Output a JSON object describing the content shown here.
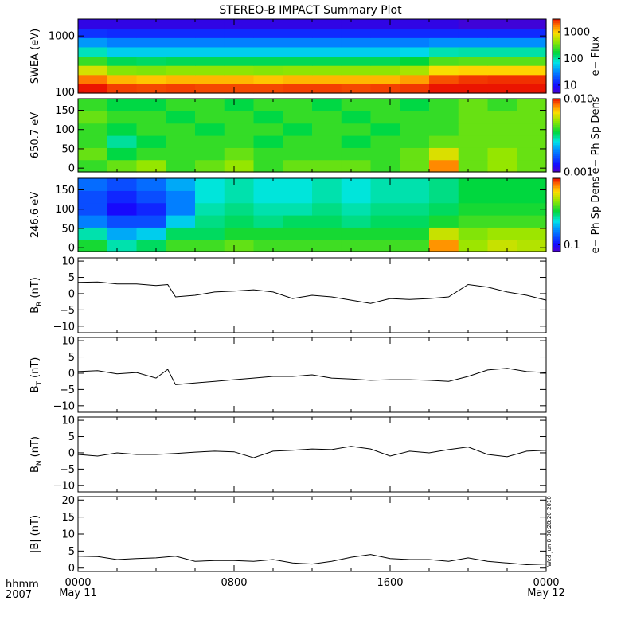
{
  "figure": {
    "title": "STEREO-B IMPACT Summary Plot",
    "footer_left": [
      "hhmm",
      "2007"
    ],
    "x_ticks": [
      {
        "label": "0000",
        "sub": "May 11",
        "hour": 0
      },
      {
        "label": "0800",
        "sub": "",
        "hour": 8
      },
      {
        "label": "1600",
        "sub": "",
        "hour": 16
      },
      {
        "label": "0000",
        "sub": "May 12",
        "hour": 24
      }
    ],
    "timestamp": "Wed Jun 8 08:28:20 2010"
  },
  "chart_data": [
    {
      "id": "swea",
      "type": "heatmap",
      "ylabel": "SWEA (eV)",
      "yscale": "log",
      "ylim": [
        95,
        2000
      ],
      "yticks": [
        {
          "v": 100,
          "l": "100"
        },
        {
          "v": 1000,
          "l": "1000"
        }
      ],
      "colorbar": {
        "label": "e− Flux",
        "scale": "log",
        "range": [
          5,
          3000
        ],
        "ticks": [
          {
            "v": 10,
            "l": "10"
          },
          {
            "v": 100,
            "l": "100"
          },
          {
            "v": 1000,
            "l": "1000"
          }
        ]
      },
      "rows_low_to_high": [
        [
          3000,
          2400,
          2300,
          2400,
          2300,
          2300,
          2300,
          2400,
          2400,
          2300,
          2400,
          2500,
          3200,
          3400,
          3500,
          3500
        ],
        [
          1800,
          1200,
          1100,
          1200,
          1200,
          1200,
          1100,
          1200,
          1200,
          1200,
          1200,
          1400,
          2200,
          2500,
          2600,
          2600
        ],
        [
          700,
          400,
          380,
          420,
          420,
          420,
          400,
          420,
          420,
          420,
          420,
          500,
          900,
          1000,
          1000,
          1000
        ],
        [
          240,
          150,
          140,
          150,
          150,
          150,
          150,
          150,
          150,
          150,
          150,
          170,
          280,
          300,
          300,
          300
        ],
        [
          90,
          60,
          60,
          60,
          60,
          60,
          60,
          60,
          60,
          60,
          60,
          65,
          95,
          100,
          100,
          100
        ],
        [
          38,
          30,
          30,
          30,
          30,
          30,
          30,
          30,
          30,
          30,
          30,
          30,
          35,
          35,
          35,
          35
        ],
        [
          14,
          13,
          13,
          13,
          13,
          13,
          13,
          13,
          13,
          13,
          13,
          13,
          13,
          13,
          13,
          13
        ],
        [
          7,
          7,
          7,
          7,
          7,
          7,
          7,
          7,
          7,
          7,
          7,
          7,
          7,
          6,
          6,
          6
        ]
      ]
    },
    {
      "id": "pad650",
      "type": "heatmap",
      "ylabel": "650.7 eV",
      "yscale": "linear",
      "ylim": [
        -10,
        180
      ],
      "yticks": [
        {
          "v": 0,
          "l": "0"
        },
        {
          "v": 50,
          "l": "50"
        },
        {
          "v": 100,
          "l": "100"
        },
        {
          "v": 150,
          "l": "150"
        }
      ],
      "colorbar": {
        "label": "e− Ph Sp Dens",
        "scale": "log",
        "range": [
          0.001,
          0.01
        ],
        "ticks": [
          {
            "v": 0.001,
            "l": "0.001"
          },
          {
            "v": 0.01,
            "l": "0.010"
          }
        ]
      },
      "rows_low_to_high": [
        [
          0.004,
          0.0045,
          0.005,
          0.004,
          0.0045,
          0.005,
          0.004,
          0.0045,
          0.0045,
          0.0045,
          0.004,
          0.0045,
          0.008,
          0.0045,
          0.005,
          0.0045
        ],
        [
          0.0045,
          0.0035,
          0.004,
          0.004,
          0.004,
          0.0045,
          0.004,
          0.004,
          0.004,
          0.004,
          0.004,
          0.0045,
          0.006,
          0.0045,
          0.005,
          0.0045
        ],
        [
          0.004,
          0.003,
          0.0035,
          0.004,
          0.004,
          0.004,
          0.0035,
          0.004,
          0.004,
          0.0035,
          0.004,
          0.004,
          0.0045,
          0.0045,
          0.0045,
          0.0045
        ],
        [
          0.004,
          0.0035,
          0.004,
          0.004,
          0.0035,
          0.004,
          0.004,
          0.0035,
          0.004,
          0.004,
          0.0035,
          0.004,
          0.004,
          0.0045,
          0.0045,
          0.0045
        ],
        [
          0.0045,
          0.004,
          0.004,
          0.0035,
          0.004,
          0.004,
          0.0035,
          0.004,
          0.004,
          0.0035,
          0.004,
          0.004,
          0.004,
          0.0045,
          0.0045,
          0.0045
        ],
        [
          0.004,
          0.0035,
          0.0035,
          0.004,
          0.004,
          0.0035,
          0.004,
          0.004,
          0.0035,
          0.004,
          0.004,
          0.0035,
          0.004,
          0.0045,
          0.004,
          0.0045
        ]
      ]
    },
    {
      "id": "pad246",
      "type": "heatmap",
      "ylabel": "246.6 eV",
      "yscale": "linear",
      "ylim": [
        -10,
        180
      ],
      "yticks": [
        {
          "v": 0,
          "l": "0"
        },
        {
          "v": 50,
          "l": "50"
        },
        {
          "v": 100,
          "l": "100"
        },
        {
          "v": 150,
          "l": "150"
        }
      ],
      "colorbar": {
        "label": "e− Ph Sp Dens",
        "scale": "log",
        "range": [
          0.07,
          3
        ],
        "ticks": [
          {
            "v": 0.1,
            "l": "0.1"
          }
        ]
      },
      "rows_low_to_high": [
        [
          0.6,
          0.4,
          0.5,
          0.7,
          0.7,
          0.8,
          0.7,
          0.7,
          0.7,
          0.7,
          0.7,
          0.7,
          2.0,
          1.0,
          1.2,
          1.1
        ],
        [
          0.4,
          0.25,
          0.3,
          0.5,
          0.5,
          0.6,
          0.6,
          0.6,
          0.6,
          0.6,
          0.6,
          0.6,
          1.2,
          0.9,
          1.0,
          1.0
        ],
        [
          0.2,
          0.15,
          0.15,
          0.3,
          0.45,
          0.5,
          0.45,
          0.5,
          0.5,
          0.45,
          0.5,
          0.5,
          0.6,
          0.7,
          0.7,
          0.7
        ],
        [
          0.15,
          0.1,
          0.12,
          0.2,
          0.4,
          0.45,
          0.4,
          0.4,
          0.45,
          0.4,
          0.45,
          0.45,
          0.5,
          0.6,
          0.6,
          0.6
        ],
        [
          0.15,
          0.12,
          0.15,
          0.2,
          0.35,
          0.4,
          0.35,
          0.35,
          0.4,
          0.35,
          0.4,
          0.4,
          0.45,
          0.55,
          0.55,
          0.55
        ],
        [
          0.18,
          0.15,
          0.18,
          0.25,
          0.35,
          0.4,
          0.35,
          0.35,
          0.4,
          0.35,
          0.4,
          0.4,
          0.45,
          0.55,
          0.55,
          0.55
        ]
      ]
    },
    {
      "id": "br",
      "type": "line",
      "ylabel_main": "B",
      "ylabel_sub": "R",
      "ylabel_unit": "(nT)",
      "ylim": [
        -12,
        11
      ],
      "yticks": [
        {
          "v": -10,
          "l": "−10"
        },
        {
          "v": -5,
          "l": "−5"
        },
        {
          "v": 0,
          "l": "0"
        },
        {
          "v": 5,
          "l": "5"
        },
        {
          "v": 10,
          "l": "10"
        }
      ],
      "x": [
        0,
        1,
        2,
        3,
        4,
        4.6,
        5,
        6,
        7,
        8,
        9,
        10,
        11,
        12,
        13,
        14,
        15,
        16,
        17,
        18,
        19,
        20,
        21,
        22,
        23,
        24
      ],
      "values": [
        3.5,
        3.6,
        3.0,
        3.0,
        2.5,
        2.8,
        -1.0,
        -0.5,
        0.5,
        0.8,
        1.2,
        0.5,
        -1.5,
        -0.5,
        -1.0,
        -2.0,
        -3.0,
        -1.5,
        -1.8,
        -1.5,
        -1.0,
        2.8,
        2.0,
        0.5,
        -0.5,
        -2.0
      ]
    },
    {
      "id": "bt",
      "type": "line",
      "ylabel_main": "B",
      "ylabel_sub": "T",
      "ylabel_unit": "(nT)",
      "ylim": [
        -12,
        11
      ],
      "yticks": [
        {
          "v": -10,
          "l": "−10"
        },
        {
          "v": -5,
          "l": "−5"
        },
        {
          "v": 0,
          "l": "0"
        },
        {
          "v": 5,
          "l": "5"
        },
        {
          "v": 10,
          "l": "10"
        }
      ],
      "x": [
        0,
        1,
        2,
        3,
        4,
        4.6,
        5,
        6,
        7,
        8,
        9,
        10,
        11,
        12,
        13,
        14,
        15,
        16,
        17,
        18,
        19,
        20,
        21,
        22,
        23,
        24
      ],
      "values": [
        0.5,
        0.8,
        -0.2,
        0.2,
        -1.5,
        1.2,
        -3.5,
        -3.0,
        -2.5,
        -2.0,
        -1.5,
        -1.0,
        -1.0,
        -0.5,
        -1.5,
        -1.8,
        -2.2,
        -2.0,
        -2.0,
        -2.2,
        -2.5,
        -1.0,
        1.0,
        1.5,
        0.5,
        0.2
      ]
    },
    {
      "id": "bn",
      "type": "line",
      "ylabel_main": "B",
      "ylabel_sub": "N",
      "ylabel_unit": "(nT)",
      "ylim": [
        -12,
        11
      ],
      "yticks": [
        {
          "v": -10,
          "l": "−10"
        },
        {
          "v": -5,
          "l": "−5"
        },
        {
          "v": 0,
          "l": "0"
        },
        {
          "v": 5,
          "l": "5"
        },
        {
          "v": 10,
          "l": "10"
        }
      ],
      "x": [
        0,
        1,
        2,
        3,
        4,
        5,
        6,
        7,
        8,
        9,
        10,
        11,
        12,
        13,
        14,
        15,
        16,
        17,
        18,
        19,
        20,
        21,
        22,
        23,
        24
      ],
      "values": [
        -0.5,
        -1.0,
        0.0,
        -0.5,
        -0.5,
        -0.2,
        0.2,
        0.5,
        0.3,
        -1.5,
        0.5,
        0.8,
        1.2,
        1.0,
        2.0,
        1.2,
        -1.0,
        0.5,
        0.0,
        1.0,
        1.8,
        -0.5,
        -1.2,
        0.5,
        0.8
      ]
    },
    {
      "id": "bmag",
      "type": "line",
      "ylabel_main": "|B|",
      "ylabel_sub": "",
      "ylabel_unit": "(nT)",
      "ylim": [
        -1,
        21
      ],
      "yticks": [
        {
          "v": 0,
          "l": "0"
        },
        {
          "v": 5,
          "l": "5"
        },
        {
          "v": 10,
          "l": "10"
        },
        {
          "v": 15,
          "l": "15"
        },
        {
          "v": 20,
          "l": "20"
        }
      ],
      "x": [
        0,
        1,
        2,
        3,
        4,
        5,
        6,
        7,
        8,
        9,
        10,
        11,
        12,
        13,
        14,
        15,
        16,
        17,
        18,
        19,
        20,
        21,
        22,
        23,
        24
      ],
      "values": [
        3.5,
        3.4,
        2.5,
        2.8,
        3.0,
        3.5,
        2.0,
        2.2,
        2.2,
        2.0,
        2.5,
        1.5,
        1.2,
        2.0,
        3.2,
        4.0,
        2.8,
        2.5,
        2.5,
        2.0,
        3.0,
        2.0,
        1.5,
        1.0,
        1.2
      ]
    }
  ]
}
